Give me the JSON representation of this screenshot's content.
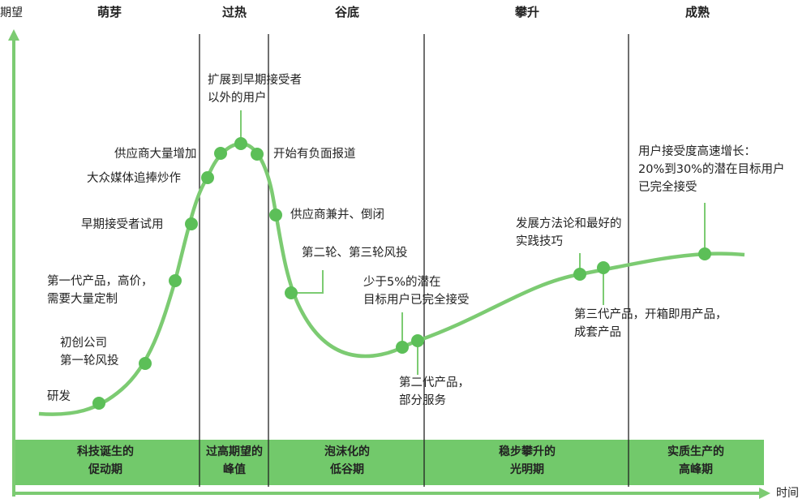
{
  "axes": {
    "y_label": "期望",
    "x_label": "时间"
  },
  "phases": [
    {
      "header": "萌芽",
      "band": [
        "科技诞生的",
        "促动期"
      ]
    },
    {
      "header": "过热",
      "band": [
        "过高期望的",
        "峰值"
      ]
    },
    {
      "header": "谷底",
      "band": [
        "泡沫化的",
        "低谷期"
      ]
    },
    {
      "header": "攀升",
      "band": [
        "稳步攀升的",
        "光明期"
      ]
    },
    {
      "header": "成熟",
      "band": [
        "实质生产的",
        "高峰期"
      ]
    }
  ],
  "events": [
    {
      "text": [
        "研发"
      ]
    },
    {
      "text": [
        "初创公司",
        "第一轮风投"
      ]
    },
    {
      "text": [
        "第一代产品，高价，",
        "需要大量定制"
      ]
    },
    {
      "text": [
        "早期接受者试用"
      ]
    },
    {
      "text": [
        "大众媒体追捧炒作"
      ]
    },
    {
      "text": [
        "供应商大量增加"
      ]
    },
    {
      "text": [
        "扩展到早期接受者",
        "以外的用户"
      ]
    },
    {
      "text": [
        "开始有负面报道"
      ]
    },
    {
      "text": [
        "供应商兼并、倒闭"
      ]
    },
    {
      "text": [
        "第二轮、第三轮风投"
      ]
    },
    {
      "text": [
        "少于5%的潜在",
        "目标用户已完全接受"
      ]
    },
    {
      "text": [
        "第二代产品，",
        "部分服务"
      ]
    },
    {
      "text": [
        "发展方法论和最好的",
        "实践技巧"
      ]
    },
    {
      "text": [
        "第三代产品，开箱即用产品，",
        "成套产品"
      ]
    },
    {
      "text": [
        "用户接受度高速增长：",
        "20%到30%的潜在目标用户",
        "已完全接受"
      ]
    }
  ],
  "colors": {
    "curve": "#7ccb72",
    "dot": "#5cbf58",
    "band": "#72c96b",
    "axis": "#7ccb72"
  }
}
